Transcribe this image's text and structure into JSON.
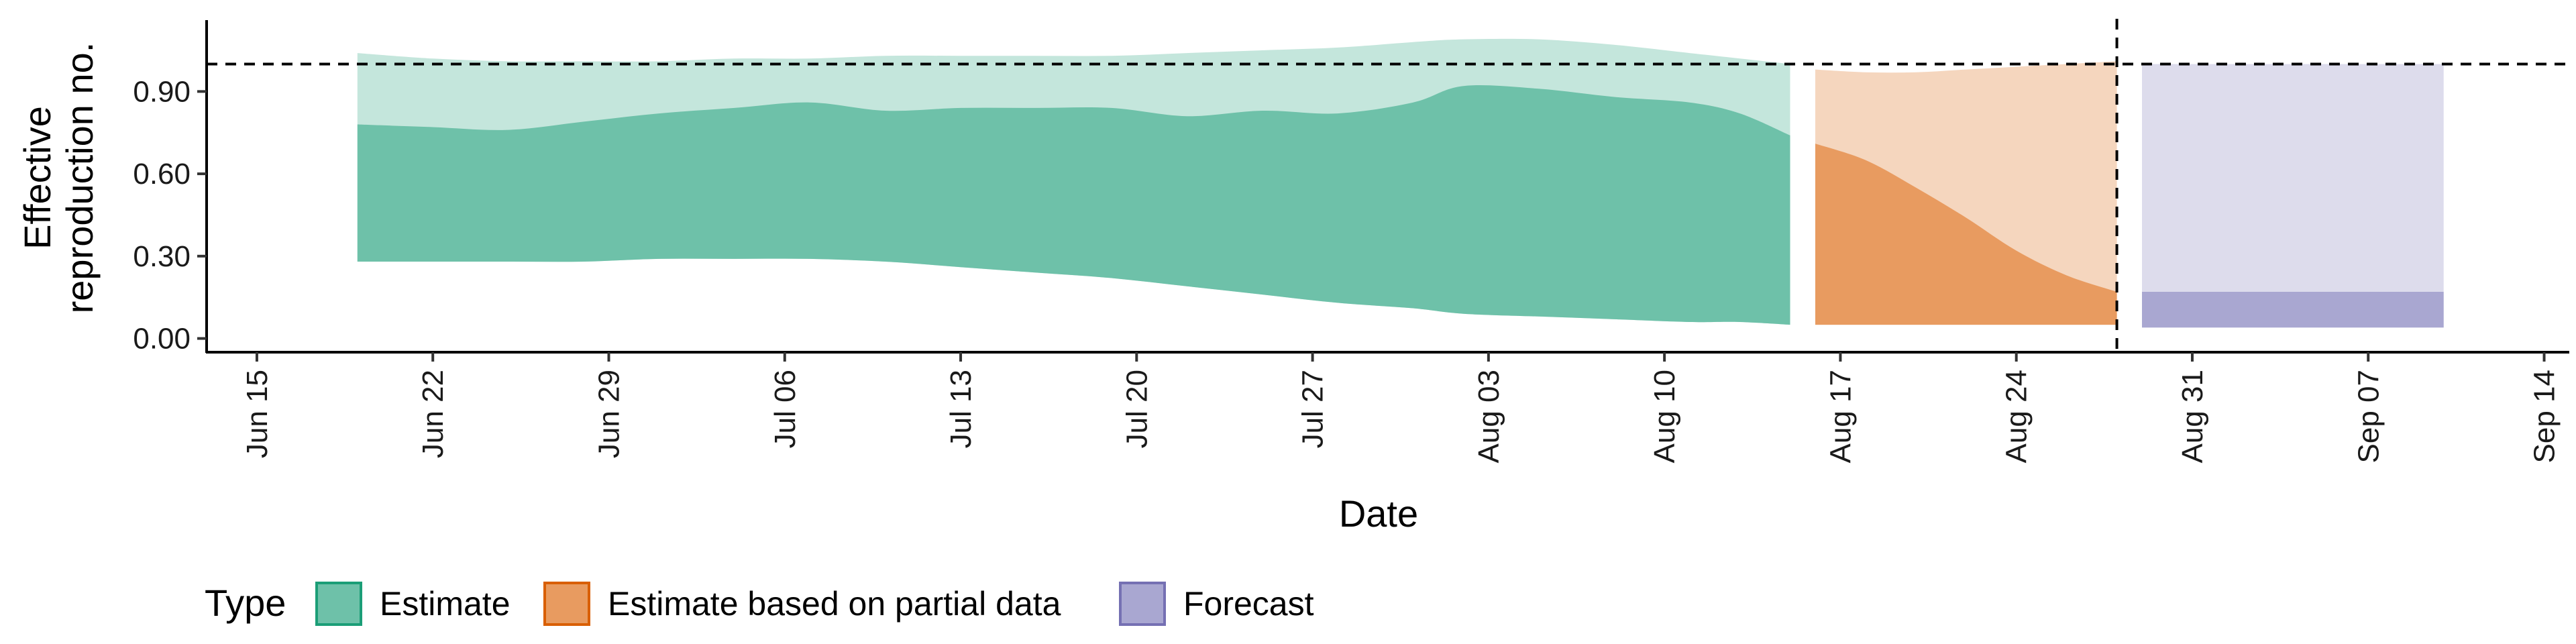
{
  "chart_data": {
    "type": "area",
    "xlabel": "Date",
    "ylabel": [
      "Effective",
      "reproduction no."
    ],
    "x_domain": [
      "2020-06-13",
      "2020-09-15"
    ],
    "ylim": [
      -0.05,
      1.16
    ],
    "x_ticks": [
      {
        "date": "2020-06-15",
        "label": "Jun 15"
      },
      {
        "date": "2020-06-22",
        "label": "Jun 22"
      },
      {
        "date": "2020-06-29",
        "label": "Jun 29"
      },
      {
        "date": "2020-07-06",
        "label": "Jul 06"
      },
      {
        "date": "2020-07-13",
        "label": "Jul 13"
      },
      {
        "date": "2020-07-20",
        "label": "Jul 20"
      },
      {
        "date": "2020-07-27",
        "label": "Jul 27"
      },
      {
        "date": "2020-08-03",
        "label": "Aug 03"
      },
      {
        "date": "2020-08-10",
        "label": "Aug 10"
      },
      {
        "date": "2020-08-17",
        "label": "Aug 17"
      },
      {
        "date": "2020-08-24",
        "label": "Aug 24"
      },
      {
        "date": "2020-08-31",
        "label": "Aug 31"
      },
      {
        "date": "2020-09-07",
        "label": "Sep 07"
      },
      {
        "date": "2020-09-14",
        "label": "Sep 14"
      }
    ],
    "y_ticks": [
      {
        "value": 0.0,
        "label": "0.00"
      },
      {
        "value": 0.3,
        "label": "0.30"
      },
      {
        "value": 0.6,
        "label": "0.60"
      },
      {
        "value": 0.9,
        "label": "0.90"
      }
    ],
    "reference_line_y": 1.0,
    "forecast_start": "2020-08-28",
    "grid": false,
    "legend": {
      "title": "Type",
      "position": "bottom",
      "items": [
        {
          "label": "Estimate",
          "fill": "#6ec1a9",
          "stroke": "#1b9e77"
        },
        {
          "label": "Estimate based on partial data",
          "fill": "#e89b60",
          "stroke": "#d95f02"
        },
        {
          "label": "Forecast",
          "fill": "#a9a7d1",
          "stroke": "#7570b3"
        }
      ]
    },
    "series": [
      {
        "type": "Estimate",
        "outer_color": "#c4e6dc",
        "inner_color": "#6ec1a9",
        "x": [
          "2020-06-19",
          "2020-06-22",
          "2020-06-25",
          "2020-06-28",
          "2020-07-01",
          "2020-07-04",
          "2020-07-07",
          "2020-07-10",
          "2020-07-13",
          "2020-07-16",
          "2020-07-19",
          "2020-07-22",
          "2020-07-25",
          "2020-07-28",
          "2020-07-31",
          "2020-08-02",
          "2020-08-05",
          "2020-08-08",
          "2020-08-11",
          "2020-08-13",
          "2020-08-15"
        ],
        "upper90": [
          1.04,
          1.02,
          1.01,
          1.01,
          1.01,
          1.02,
          1.02,
          1.03,
          1.03,
          1.03,
          1.03,
          1.04,
          1.05,
          1.06,
          1.08,
          1.09,
          1.09,
          1.07,
          1.04,
          1.02,
          1.0
        ],
        "upper50": [
          0.78,
          0.77,
          0.76,
          0.79,
          0.82,
          0.84,
          0.86,
          0.83,
          0.84,
          0.84,
          0.84,
          0.81,
          0.83,
          0.82,
          0.86,
          0.92,
          0.91,
          0.88,
          0.86,
          0.82,
          0.74
        ],
        "lower50": [
          0.28,
          0.28,
          0.28,
          0.28,
          0.29,
          0.29,
          0.29,
          0.28,
          0.26,
          0.24,
          0.22,
          0.19,
          0.16,
          0.13,
          0.11,
          0.09,
          0.08,
          0.07,
          0.06,
          0.06,
          0.05
        ],
        "lower90": [
          0.28,
          0.28,
          0.28,
          0.28,
          0.29,
          0.29,
          0.29,
          0.28,
          0.26,
          0.24,
          0.22,
          0.19,
          0.16,
          0.13,
          0.11,
          0.09,
          0.08,
          0.07,
          0.06,
          0.06,
          0.05
        ]
      },
      {
        "type": "Estimate based on partial data",
        "outer_color": "#f5d6be",
        "inner_color": "#e89b60",
        "x": [
          "2020-08-16",
          "2020-08-18",
          "2020-08-20",
          "2020-08-22",
          "2020-08-24",
          "2020-08-26",
          "2020-08-28"
        ],
        "upper90": [
          0.98,
          0.97,
          0.97,
          0.98,
          0.99,
          1.0,
          1.01
        ],
        "upper50": [
          0.71,
          0.65,
          0.55,
          0.44,
          0.32,
          0.23,
          0.17
        ],
        "lower50": [
          0.05,
          0.05,
          0.05,
          0.05,
          0.05,
          0.05,
          0.05
        ],
        "lower90": [
          0.05,
          0.05,
          0.05,
          0.05,
          0.05,
          0.05,
          0.05
        ]
      },
      {
        "type": "Forecast",
        "outer_color": "#dddcec",
        "inner_color": "#a9a7d1",
        "x": [
          "2020-08-29",
          "2020-09-10"
        ],
        "upper90": [
          1.0,
          1.0
        ],
        "upper50": [
          0.17,
          0.17
        ],
        "lower50": [
          0.04,
          0.04
        ],
        "lower90": [
          0.04,
          0.04
        ]
      }
    ]
  }
}
